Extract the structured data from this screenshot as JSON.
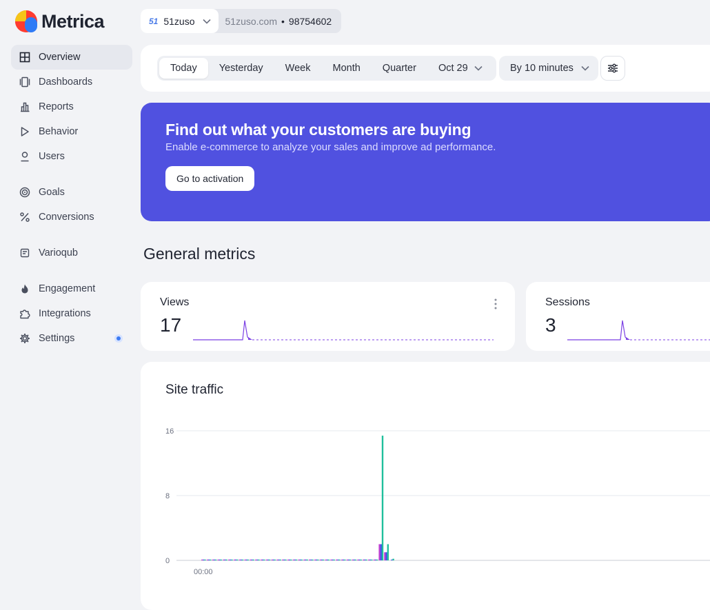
{
  "app": {
    "name": "Metrica",
    "brand_colors": [
      "#f5c518",
      "#ff3b30",
      "#2f7bf6"
    ]
  },
  "site_selector": {
    "badge": "51",
    "name": "51zuso",
    "domain": "51zuso.com",
    "separator": "•",
    "counter_id": "98754602"
  },
  "sidebar": {
    "items": [
      {
        "label": "Overview",
        "icon": "grid-icon",
        "active": true
      },
      {
        "label": "Dashboards",
        "icon": "dashboards-icon"
      },
      {
        "label": "Reports",
        "icon": "bar-chart-icon"
      },
      {
        "label": "Behavior",
        "icon": "play-icon"
      },
      {
        "label": "Users",
        "icon": "user-icon"
      },
      {
        "label": "Goals",
        "icon": "target-icon"
      },
      {
        "label": "Conversions",
        "icon": "percent-icon"
      },
      {
        "label": "Varioqub",
        "icon": "varioqub-icon"
      },
      {
        "label": "Engagement",
        "icon": "flame-icon"
      },
      {
        "label": "Integrations",
        "icon": "puzzle-icon"
      },
      {
        "label": "Settings",
        "icon": "gear-icon",
        "notification": true
      }
    ]
  },
  "filters": {
    "periods": [
      "Today",
      "Yesterday",
      "Week",
      "Month",
      "Quarter"
    ],
    "active_period": "Today",
    "date": "Oct 29",
    "interval": "By 10 minutes"
  },
  "promo": {
    "title": "Find out what your customers are buying",
    "subtitle": "Enable e-commerce to analyze your sales and improve ad performance.",
    "button": "Go to activation",
    "background": "#5051e0"
  },
  "general_metrics": {
    "title": "General metrics",
    "views": {
      "label": "Views",
      "value": "17"
    },
    "sessions": {
      "label": "Sessions",
      "value": "3"
    }
  },
  "site_traffic": {
    "title": "Site traffic"
  },
  "chart_data": {
    "type": "bar",
    "title": "Site traffic",
    "ylim": [
      0,
      16
    ],
    "yticks": [
      0,
      8,
      16
    ],
    "x_labels": [
      "00:00"
    ],
    "interval_count": 36,
    "series": [
      {
        "name": "magenta",
        "color": "#c23fd1",
        "values": [
          0.1,
          0.1,
          0.1,
          0.1,
          0.1,
          0.1,
          0.1,
          0.1,
          0.1,
          0.1,
          0.1,
          0.1,
          0.1,
          0.1,
          0.1,
          0.1,
          0.1,
          0.1,
          0.1,
          0.1,
          0.1,
          0.1,
          0.1,
          0.1,
          0.1,
          0.1,
          0.1,
          0.1,
          0.1,
          0.1,
          0.1,
          0.1,
          0.1,
          2,
          1,
          0
        ]
      },
      {
        "name": "blue",
        "color": "#3f55e8",
        "values": [
          0.1,
          0.1,
          0.1,
          0.1,
          0.1,
          0.1,
          0.1,
          0.1,
          0.1,
          0.1,
          0.1,
          0.1,
          0.1,
          0.1,
          0.1,
          0.1,
          0.1,
          0.1,
          0.1,
          0.1,
          0.1,
          0.1,
          0.1,
          0.1,
          0.1,
          0.1,
          0.1,
          0.1,
          0.1,
          0.1,
          0.1,
          0.1,
          0.1,
          2,
          1,
          0.1
        ]
      },
      {
        "name": "teal",
        "color": "#1fbf9c",
        "values": [
          0.1,
          0.1,
          0.1,
          0.1,
          0.1,
          0.1,
          0.1,
          0.1,
          0.1,
          0.1,
          0.1,
          0.1,
          0.1,
          0.1,
          0.1,
          0.1,
          0.1,
          0.1,
          0.1,
          0.1,
          0.1,
          0.1,
          0.1,
          0.1,
          0.1,
          0.1,
          0.1,
          0.1,
          0.1,
          0.1,
          0.1,
          0.1,
          0.1,
          15.4,
          2,
          0.2
        ]
      }
    ]
  }
}
